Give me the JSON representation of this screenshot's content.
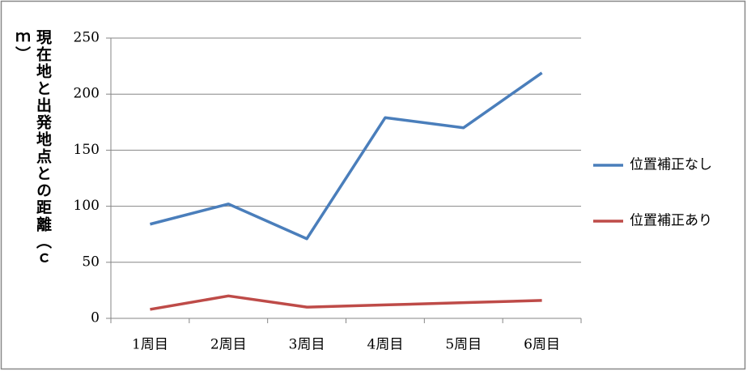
{
  "chart_data": {
    "type": "line",
    "y_label": "現在地と出発地点との距離（ｃｍ）",
    "categories": [
      "1周目",
      "2周目",
      "3周目",
      "4周目",
      "5周目",
      "6周目"
    ],
    "series": [
      {
        "name": "位置補正なし",
        "color": "#4a7ebb",
        "values": [
          84,
          102,
          71,
          179,
          170,
          219
        ]
      },
      {
        "name": "位置補正あり",
        "color": "#be4b48",
        "values": [
          8,
          20,
          10,
          12,
          14,
          16
        ]
      }
    ],
    "ylim": [
      0,
      250
    ],
    "yticks": [
      0,
      50,
      100,
      150,
      200,
      250
    ],
    "grid": true,
    "legend": "right"
  }
}
